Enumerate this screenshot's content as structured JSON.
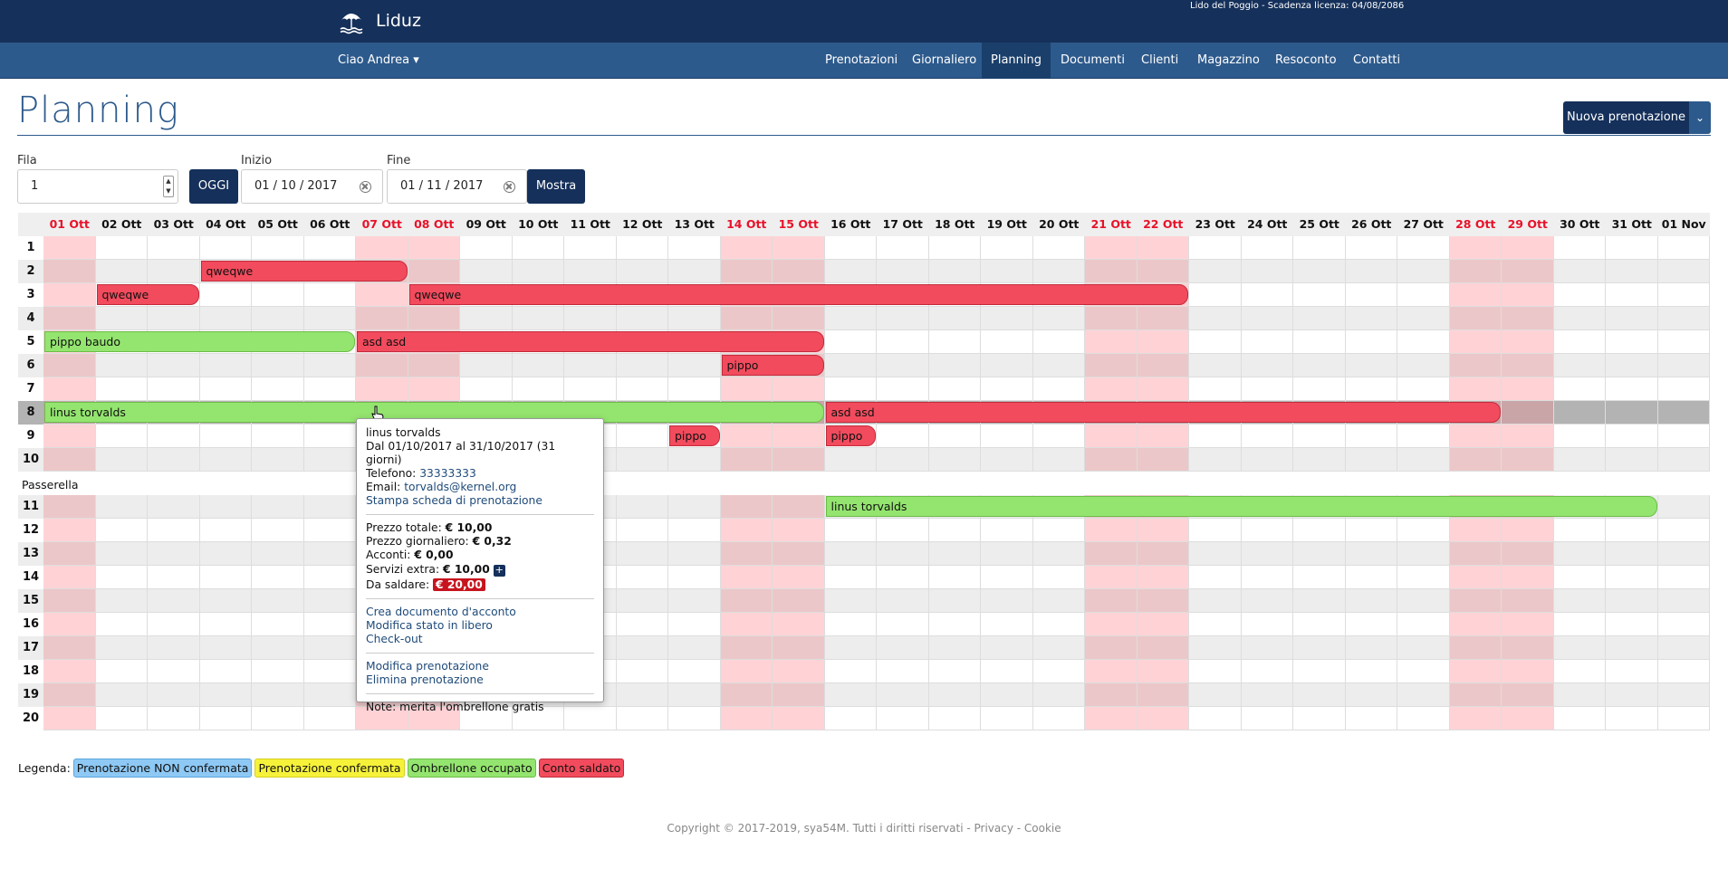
{
  "app": {
    "name": "Liduz",
    "license": "Lido del Poggio - Scadenza licenza: 04/08/2086"
  },
  "nav": {
    "greeting": "Ciao Andrea ▾",
    "items": [
      "Prenotazioni",
      "Giornaliero",
      "Planning",
      "Documenti",
      "Clienti",
      "Magazzino",
      "Resoconto",
      "Contatti"
    ],
    "active": "Planning"
  },
  "page": {
    "title": "Planning",
    "new_booking": "Nuova prenotazione"
  },
  "filters": {
    "fila_label": "Fila",
    "fila_value": "1",
    "oggi": "OGGI",
    "inizio_label": "Inizio",
    "inizio_value": "01 / 10 / 2017",
    "fine_label": "Fine",
    "fine_value": "01 / 11 / 2017",
    "mostra": "Mostra"
  },
  "planning": {
    "days": [
      "01 Ott",
      "02 Ott",
      "03 Ott",
      "04 Ott",
      "05 Ott",
      "06 Ott",
      "07 Ott",
      "08 Ott",
      "09 Ott",
      "10 Ott",
      "11 Ott",
      "12 Ott",
      "13 Ott",
      "14 Ott",
      "15 Ott",
      "16 Ott",
      "17 Ott",
      "18 Ott",
      "19 Ott",
      "20 Ott",
      "21 Ott",
      "22 Ott",
      "23 Ott",
      "24 Ott",
      "25 Ott",
      "26 Ott",
      "27 Ott",
      "28 Ott",
      "29 Ott",
      "30 Ott",
      "31 Ott",
      "01 Nov"
    ],
    "weekend_days": [
      "01 Ott",
      "07 Ott",
      "08 Ott",
      "14 Ott",
      "15 Ott",
      "21 Ott",
      "22 Ott",
      "28 Ott",
      "29 Ott"
    ],
    "rows_top": [
      "1",
      "2",
      "3",
      "4",
      "5",
      "6",
      "7",
      "8",
      "9",
      "10"
    ],
    "section_label": "Passerella",
    "rows_bottom": [
      "11",
      "12",
      "13",
      "14",
      "15",
      "16",
      "17",
      "18",
      "19",
      "20"
    ],
    "highlighted_row": "8",
    "bookings": [
      {
        "row": "2",
        "start": "04 Ott",
        "end": "07 Ott",
        "label": "qweqwe",
        "status": "saldato"
      },
      {
        "row": "3",
        "start": "02 Ott",
        "end": "03 Ott",
        "label": "qweqwe",
        "status": "saldato"
      },
      {
        "row": "3",
        "start": "08 Ott",
        "end": "22 Ott",
        "label": "qweqwe",
        "status": "saldato"
      },
      {
        "row": "5",
        "start": "01 Ott",
        "end": "06 Ott",
        "label": "pippo baudo",
        "status": "occupato"
      },
      {
        "row": "5",
        "start": "07 Ott",
        "end": "15 Ott",
        "label": "asd asd",
        "status": "saldato"
      },
      {
        "row": "6",
        "start": "14 Ott",
        "end": "15 Ott",
        "label": "pippo",
        "status": "saldato"
      },
      {
        "row": "8",
        "start": "01 Ott",
        "end": "15 Ott",
        "label": "linus torvalds",
        "status": "occupato"
      },
      {
        "row": "8",
        "start": "16 Ott",
        "end": "28 Ott",
        "label": "asd asd",
        "status": "saldato"
      },
      {
        "row": "9",
        "start": "13 Ott",
        "end": "13 Ott",
        "label": "pippo",
        "status": "saldato"
      },
      {
        "row": "9",
        "start": "16 Ott",
        "end": "16 Ott",
        "label": "pippo",
        "status": "saldato"
      },
      {
        "row": "11",
        "start": "16 Ott",
        "end": "31 Ott",
        "label": "linus torvalds",
        "status": "occupato"
      }
    ]
  },
  "popover": {
    "name": "linus torvalds",
    "period": "Dal 01/10/2017 al 31/10/2017 (31 giorni)",
    "phone_label": "Telefono:",
    "phone": "33333333",
    "email_label": "Email:",
    "email": "torvalds@kernel.org",
    "print_link": "Stampa scheda di prenotazione",
    "total_label": "Prezzo totale:",
    "total": "€ 10,00",
    "daily_label": "Prezzo giornaliero:",
    "daily": "€ 0,32",
    "deposit_label": "Acconti:",
    "deposit": "€ 0,00",
    "extra_label": "Servizi extra:",
    "extra": "€ 10,00",
    "due_label": "Da saldare:",
    "due": "€ 20,00",
    "actions1": [
      "Crea documento d'acconto",
      "Modifica stato in libero",
      "Check-out"
    ],
    "actions2": [
      "Modifica prenotazione",
      "Elimina prenotazione"
    ],
    "note": "Note: merita l'ombrellone gratis"
  },
  "legend": {
    "label": "Legenda:",
    "items": [
      {
        "label": "Prenotazione NON confermata",
        "color": "#8ec9f5",
        "border": "#5aa6e0"
      },
      {
        "label": "Prenotazione confermata",
        "color": "#f6f23a",
        "border": "#d4d020"
      },
      {
        "label": "Ombrellone occupato",
        "color": "#94e56f",
        "border": "#6bbd48"
      },
      {
        "label": "Conto saldato",
        "color": "#f24b5d",
        "border": "#c22b3c"
      }
    ]
  },
  "footer": {
    "copyright": "Copyright © 2017-2019, sya54M. Tutti i diritti riservati - ",
    "privacy": "Privacy",
    "dash": " - ",
    "cookie": "Cookie"
  },
  "colors": {
    "navy": "#15305a",
    "nav_blue": "#2d5a8c",
    "weekend_red": "#e8122a",
    "weekend_cell": "#ffd3d6",
    "weekend_cell_alt": "#ecc7c9",
    "stripe": "#ededed",
    "highlight_row": "#b3b3b3",
    "highlight_weekend": "#c9a5a8"
  }
}
